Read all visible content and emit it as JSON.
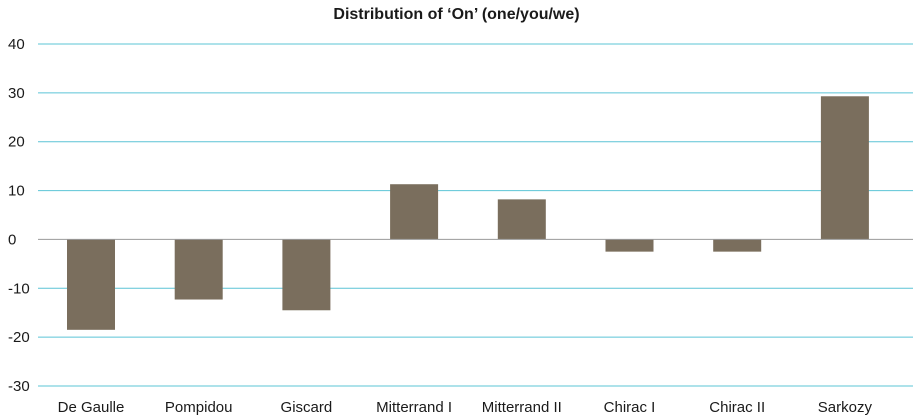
{
  "chart_data": {
    "type": "bar",
    "title": "Distribution of ‘On’ (one/you/we)",
    "xlabel": "",
    "ylabel": "",
    "categories": [
      "De Gaulle",
      "Pompidou",
      "Giscard",
      "Mitterrand I",
      "Mitterrand II",
      "Chirac I",
      "Chirac II",
      "Sarkozy"
    ],
    "values": [
      -18.5,
      -12.3,
      -14.5,
      11.3,
      8.2,
      -2.5,
      -2.5,
      29.3
    ],
    "ylim": [
      -30,
      40
    ],
    "yticks": [
      40,
      30,
      20,
      10,
      0,
      -10,
      -20,
      -30
    ],
    "grid": true,
    "colors": {
      "bar": "#7a6e5d",
      "grid": "#5bc4d6",
      "zero_line": "#9a9a9a"
    }
  }
}
